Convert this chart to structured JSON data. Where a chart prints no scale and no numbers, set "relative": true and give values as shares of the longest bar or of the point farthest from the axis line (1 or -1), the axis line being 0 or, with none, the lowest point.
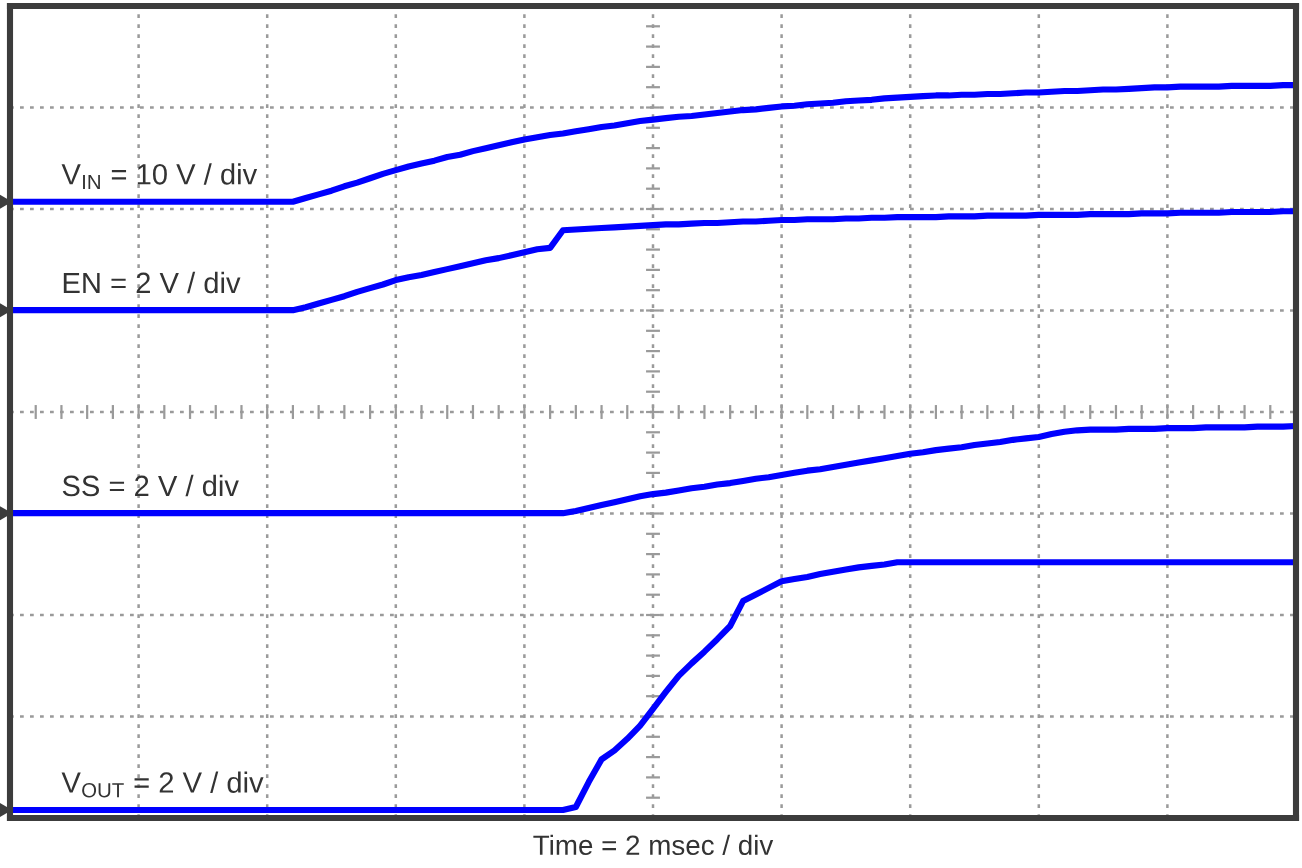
{
  "chart_data": {
    "type": "line",
    "relative": true,
    "xlabel": "Time = 2 msec / div",
    "grid": true,
    "tick_labels": false,
    "line_style": "solid",
    "categories": [
      null,
      null,
      null,
      null,
      null,
      null,
      null,
      null,
      null,
      null,
      null,
      null,
      null,
      null,
      null,
      null,
      null,
      null,
      null,
      null,
      null,
      null,
      null,
      null,
      null,
      null,
      null,
      null,
      null,
      null,
      null,
      null,
      null,
      null,
      null,
      null,
      null,
      null,
      null,
      null,
      null,
      null,
      null,
      null,
      null,
      null,
      null,
      null,
      null,
      null,
      null,
      null,
      null,
      null,
      null,
      null,
      null,
      null,
      null,
      null,
      null,
      null,
      null,
      null,
      null,
      null,
      null,
      null,
      null,
      null,
      null,
      null,
      null,
      null,
      null,
      null,
      null,
      null,
      null,
      null,
      null,
      null,
      null,
      null,
      null,
      null,
      null,
      null,
      null,
      null,
      null,
      null,
      null,
      null,
      null,
      null,
      null,
      null,
      null,
      null,
      null
    ],
    "series": [
      {
        "name": "V$_{IN}$ = 10 V / div",
        "color": "#0000ff",
        "values": [
          0.841,
          0.841,
          0.841,
          0.841,
          0.841,
          0.841,
          0.841,
          0.841,
          0.841,
          0.841,
          0.841,
          0.841,
          0.841,
          0.841,
          0.841,
          0.841,
          0.841,
          0.841,
          0.841,
          0.841,
          0.841,
          0.841,
          0.841,
          0.846,
          0.851,
          0.856,
          0.862,
          0.867,
          0.873,
          0.879,
          0.884,
          0.889,
          0.893,
          0.897,
          0.902,
          0.905,
          0.91,
          0.914,
          0.918,
          0.922,
          0.926,
          0.929,
          0.932,
          0.934,
          0.937,
          0.94,
          0.943,
          0.945,
          0.948,
          0.951,
          0.953,
          0.955,
          0.957,
          0.958,
          0.96,
          0.962,
          0.964,
          0.966,
          0.967,
          0.969,
          0.971,
          0.972,
          0.974,
          0.975,
          0.976,
          0.978,
          0.979,
          0.98,
          0.982,
          0.983,
          0.984,
          0.985,
          0.986,
          0.986,
          0.987,
          0.987,
          0.988,
          0.988,
          0.989,
          0.99,
          0.99,
          0.991,
          0.992,
          0.992,
          0.993,
          0.994,
          0.994,
          0.995,
          0.996,
          0.997,
          0.997,
          0.998,
          0.998,
          0.998,
          0.998,
          0.999,
          0.999,
          0.999,
          0.999,
          1.0,
          1.0
        ]
      },
      {
        "name": "EN = 2 V / div",
        "color": "#0000ff",
        "values": [
          0.693,
          0.693,
          0.693,
          0.693,
          0.693,
          0.693,
          0.693,
          0.693,
          0.693,
          0.693,
          0.693,
          0.693,
          0.693,
          0.693,
          0.693,
          0.693,
          0.693,
          0.693,
          0.693,
          0.693,
          0.693,
          0.693,
          0.693,
          0.697,
          0.702,
          0.707,
          0.712,
          0.718,
          0.723,
          0.728,
          0.734,
          0.738,
          0.741,
          0.745,
          0.749,
          0.753,
          0.757,
          0.761,
          0.764,
          0.768,
          0.772,
          0.776,
          0.778,
          0.802,
          0.803,
          0.804,
          0.805,
          0.806,
          0.807,
          0.808,
          0.809,
          0.81,
          0.81,
          0.811,
          0.812,
          0.812,
          0.813,
          0.814,
          0.814,
          0.815,
          0.816,
          0.816,
          0.817,
          0.817,
          0.817,
          0.818,
          0.818,
          0.819,
          0.819,
          0.82,
          0.82,
          0.82,
          0.82,
          0.821,
          0.821,
          0.821,
          0.822,
          0.822,
          0.822,
          0.822,
          0.823,
          0.823,
          0.823,
          0.823,
          0.824,
          0.824,
          0.824,
          0.824,
          0.825,
          0.825,
          0.825,
          0.826,
          0.826,
          0.826,
          0.826,
          0.827,
          0.827,
          0.827,
          0.827,
          0.828,
          0.828
        ]
      },
      {
        "name": "SS = 2 V / div",
        "color": "#0000ff",
        "values": [
          0.416,
          0.416,
          0.416,
          0.416,
          0.416,
          0.416,
          0.416,
          0.416,
          0.416,
          0.416,
          0.416,
          0.416,
          0.416,
          0.416,
          0.416,
          0.416,
          0.416,
          0.416,
          0.416,
          0.416,
          0.416,
          0.416,
          0.416,
          0.416,
          0.416,
          0.416,
          0.416,
          0.416,
          0.416,
          0.416,
          0.416,
          0.416,
          0.416,
          0.416,
          0.416,
          0.416,
          0.416,
          0.416,
          0.416,
          0.416,
          0.416,
          0.416,
          0.416,
          0.416,
          0.419,
          0.423,
          0.427,
          0.431,
          0.435,
          0.439,
          0.442,
          0.444,
          0.447,
          0.45,
          0.452,
          0.455,
          0.457,
          0.46,
          0.463,
          0.465,
          0.468,
          0.471,
          0.474,
          0.476,
          0.479,
          0.482,
          0.485,
          0.488,
          0.491,
          0.494,
          0.497,
          0.499,
          0.502,
          0.504,
          0.506,
          0.509,
          0.511,
          0.513,
          0.516,
          0.518,
          0.52,
          0.524,
          0.527,
          0.529,
          0.53,
          0.53,
          0.53,
          0.531,
          0.531,
          0.531,
          0.532,
          0.532,
          0.532,
          0.533,
          0.533,
          0.533,
          0.533,
          0.534,
          0.534,
          0.534,
          0.535
        ]
      },
      {
        "name": "V$_{OUT}$ = 2 V / div",
        "color": "#0000ff",
        "values": [
          0.011,
          0.011,
          0.011,
          0.011,
          0.011,
          0.011,
          0.011,
          0.011,
          0.011,
          0.011,
          0.011,
          0.011,
          0.011,
          0.011,
          0.011,
          0.011,
          0.011,
          0.011,
          0.011,
          0.011,
          0.011,
          0.011,
          0.011,
          0.011,
          0.011,
          0.011,
          0.011,
          0.011,
          0.011,
          0.011,
          0.011,
          0.011,
          0.011,
          0.011,
          0.011,
          0.011,
          0.011,
          0.011,
          0.011,
          0.011,
          0.011,
          0.011,
          0.011,
          0.011,
          0.015,
          0.049,
          0.08,
          0.092,
          0.108,
          0.126,
          0.149,
          0.172,
          0.194,
          0.211,
          0.227,
          0.244,
          0.262,
          0.296,
          0.305,
          0.314,
          0.323,
          0.326,
          0.329,
          0.333,
          0.336,
          0.339,
          0.342,
          0.344,
          0.346,
          0.349,
          0.349,
          0.349,
          0.349,
          0.349,
          0.349,
          0.349,
          0.349,
          0.349,
          0.349,
          0.349,
          0.349,
          0.349,
          0.349,
          0.349,
          0.349,
          0.349,
          0.349,
          0.349,
          0.349,
          0.349,
          0.349,
          0.349,
          0.349,
          0.349,
          0.349,
          0.349,
          0.349,
          0.349,
          0.349,
          0.349,
          0.349
        ]
      }
    ]
  }
}
